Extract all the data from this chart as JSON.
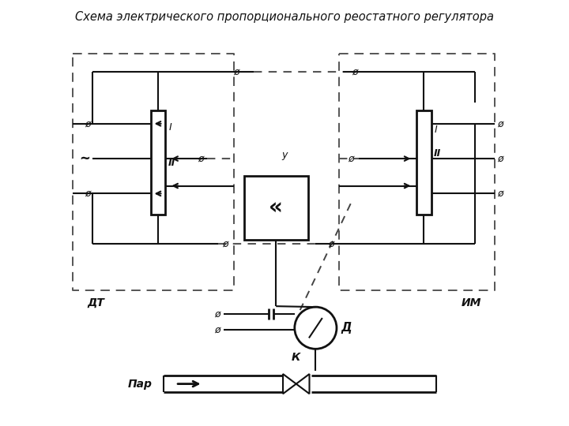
{
  "title": "Схема электрического пропорционального реостатного регулятора",
  "title_fontsize": 10.5,
  "bg_color": "#ffffff",
  "line_color": "#111111",
  "fig_width": 7.2,
  "fig_height": 5.4,
  "labels": {
    "DT": "ДТ",
    "IM": "ИМ",
    "D": "Д",
    "K": "К",
    "Par": "Пар",
    "tilde": "~",
    "I1": "I",
    "II1": "II",
    "y": "y",
    "I2": "I",
    "II2": "II"
  }
}
